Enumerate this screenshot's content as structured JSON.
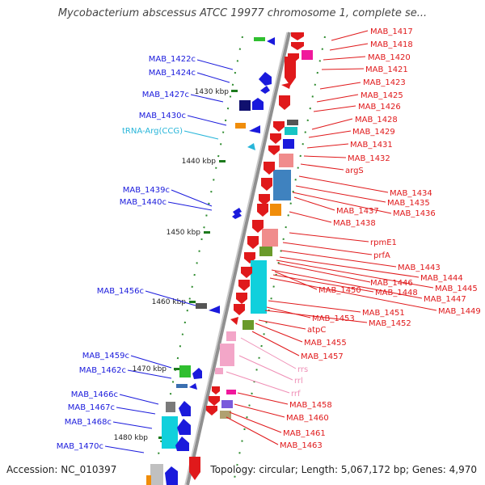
{
  "title": "Mycobacterium abscessus ATCC 19977 chromosome 1, complete se...",
  "footer": {
    "accession": "Accession: NC_010397",
    "topology": "Topology: circular; Length: 5,067,172 bp; Genes: 4,970"
  },
  "colors": {
    "left_strand": "#1a1adc",
    "right_strand": "#e0191b",
    "trna": "#27b5d9",
    "rrna": "#ef8fb6",
    "backbone": "#8c8c8c",
    "tick": "#1d7a1d"
  },
  "ticks": [
    {
      "label": "1430 kbp"
    },
    {
      "label": "1440 kbp"
    },
    {
      "label": "1450 kbp"
    },
    {
      "label": "1460 kbp"
    },
    {
      "label": "1470 kbp"
    },
    {
      "label": "1480 kbp"
    }
  ],
  "left_genes": [
    {
      "label": "MAB_1422c",
      "color": "#1a1adc"
    },
    {
      "label": "MAB_1424c",
      "color": "#1a1adc"
    },
    {
      "label": "MAB_1427c",
      "color": "#1a1adc"
    },
    {
      "label": "MAB_1430c",
      "color": "#1a1adc"
    },
    {
      "label": "tRNA-Arg(CCG)",
      "color": "#27b5d9"
    },
    {
      "label": "MAB_1439c",
      "color": "#1a1adc"
    },
    {
      "label": "MAB_1440c",
      "color": "#1a1adc"
    },
    {
      "label": "MAB_1456c",
      "color": "#1a1adc"
    },
    {
      "label": "MAB_1459c",
      "color": "#1a1adc"
    },
    {
      "label": "MAB_1462c",
      "color": "#1a1adc"
    },
    {
      "label": "MAB_1466c",
      "color": "#1a1adc"
    },
    {
      "label": "MAB_1467c",
      "color": "#1a1adc"
    },
    {
      "label": "MAB_1468c",
      "color": "#1a1adc"
    },
    {
      "label": "MAB_1470c",
      "color": "#1a1adc"
    }
  ],
  "right_genes": [
    {
      "label": "MAB_1417",
      "color": "#e0191b"
    },
    {
      "label": "MAB_1418",
      "color": "#e0191b"
    },
    {
      "label": "MAB_1420",
      "color": "#e0191b"
    },
    {
      "label": "MAB_1421",
      "color": "#e0191b"
    },
    {
      "label": "MAB_1423",
      "color": "#e0191b"
    },
    {
      "label": "MAB_1425",
      "color": "#e0191b"
    },
    {
      "label": "MAB_1426",
      "color": "#e0191b"
    },
    {
      "label": "MAB_1428",
      "color": "#e0191b"
    },
    {
      "label": "MAB_1429",
      "color": "#e0191b"
    },
    {
      "label": "MAB_1431",
      "color": "#e0191b"
    },
    {
      "label": "MAB_1432",
      "color": "#e0191b"
    },
    {
      "label": "argS",
      "color": "#e0191b"
    },
    {
      "label": "MAB_1434",
      "color": "#e0191b"
    },
    {
      "label": "MAB_1435",
      "color": "#e0191b"
    },
    {
      "label": "MAB_1437",
      "color": "#e0191b"
    },
    {
      "label": "MAB_1436",
      "color": "#e0191b"
    },
    {
      "label": "MAB_1438",
      "color": "#e0191b"
    },
    {
      "label": "rpmE1",
      "color": "#e0191b"
    },
    {
      "label": "prfA",
      "color": "#e0191b"
    },
    {
      "label": "MAB_1443",
      "color": "#e0191b"
    },
    {
      "label": "MAB_1444",
      "color": "#e0191b"
    },
    {
      "label": "MAB_1446",
      "color": "#e0191b"
    },
    {
      "label": "MAB_1445",
      "color": "#e0191b"
    },
    {
      "label": "MAB_1450",
      "color": "#e0191b"
    },
    {
      "label": "MAB_1448",
      "color": "#e0191b"
    },
    {
      "label": "MAB_1447",
      "color": "#e0191b"
    },
    {
      "label": "MAB_1449",
      "color": "#e0191b"
    },
    {
      "label": "MAB_1451",
      "color": "#e0191b"
    },
    {
      "label": "MAB_1453",
      "color": "#e0191b"
    },
    {
      "label": "MAB_1452",
      "color": "#e0191b"
    },
    {
      "label": "atpC",
      "color": "#e0191b"
    },
    {
      "label": "MAB_1455",
      "color": "#e0191b"
    },
    {
      "label": "MAB_1457",
      "color": "#e0191b"
    },
    {
      "label": "rrs",
      "color": "#ef8fb6"
    },
    {
      "label": "rrl",
      "color": "#ef8fb6"
    },
    {
      "label": "rrf",
      "color": "#ef8fb6"
    },
    {
      "label": "MAB_1458",
      "color": "#e0191b"
    },
    {
      "label": "MAB_1460",
      "color": "#e0191b"
    },
    {
      "label": "MAB_1461",
      "color": "#e0191b"
    },
    {
      "label": "MAB_1463",
      "color": "#e0191b"
    }
  ]
}
